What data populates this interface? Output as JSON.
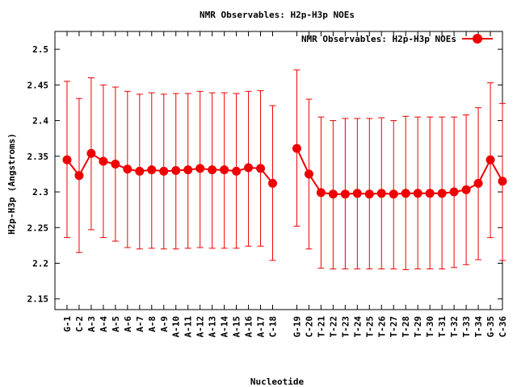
{
  "chart_data": {
    "type": "scatter",
    "title": "NMR Observables: H2p-H3p NOEs",
    "xlabel": "Nucleotide",
    "ylabel": "H2p-H3p (Angstroms)",
    "ylim": [
      2.135,
      2.525
    ],
    "yticks": [
      2.15,
      2.2,
      2.25,
      2.3,
      2.35,
      2.4,
      2.45,
      2.5
    ],
    "ytick_labels": [
      "2.15",
      "2.2",
      "2.25",
      "2.3",
      "2.35",
      "2.4",
      "2.45",
      "2.5"
    ],
    "legend_position": "top-right",
    "grid": false,
    "color": "#ee0000",
    "series": [
      {
        "name": "NMR Observables: H2p-H3p NOEs",
        "segments": [
          {
            "categories": [
              "G-1",
              "C-2",
              "A-3",
              "A-4",
              "A-5",
              "A-6",
              "A-7",
              "A-8",
              "A-9",
              "A-10",
              "A-11",
              "A-12",
              "A-13",
              "A-14",
              "A-15",
              "A-16",
              "A-17",
              "C-18"
            ],
            "positions": [
              1,
              2,
              3,
              4,
              5,
              6,
              7,
              8,
              9,
              10,
              11,
              12,
              13,
              14,
              15,
              16,
              17,
              18
            ],
            "values": [
              2.345,
              2.323,
              2.354,
              2.343,
              2.339,
              2.332,
              2.329,
              2.331,
              2.329,
              2.33,
              2.331,
              2.333,
              2.331,
              2.331,
              2.329,
              2.334,
              2.333,
              2.312
            ],
            "err_low": [
              2.236,
              2.215,
              2.247,
              2.236,
              2.231,
              2.222,
              2.22,
              2.221,
              2.22,
              2.22,
              2.221,
              2.222,
              2.221,
              2.221,
              2.221,
              2.224,
              2.224,
              2.204
            ],
            "err_high": [
              2.455,
              2.431,
              2.46,
              2.45,
              2.447,
              2.441,
              2.437,
              2.439,
              2.437,
              2.438,
              2.438,
              2.441,
              2.439,
              2.439,
              2.438,
              2.441,
              2.442,
              2.421
            ]
          },
          {
            "categories": [
              "G-19",
              "C-20",
              "T-21",
              "T-22",
              "T-23",
              "T-24",
              "T-25",
              "T-26",
              "T-27",
              "T-28",
              "T-29",
              "T-30",
              "T-31",
              "T-32",
              "T-33",
              "T-34",
              "G-35",
              "C-36"
            ],
            "positions": [
              20,
              21,
              22,
              23,
              24,
              25,
              26,
              27,
              28,
              29,
              30,
              31,
              32,
              33,
              34,
              35,
              36,
              37
            ],
            "values": [
              2.361,
              2.325,
              2.299,
              2.297,
              2.297,
              2.298,
              2.297,
              2.298,
              2.297,
              2.298,
              2.298,
              2.298,
              2.298,
              2.3,
              2.303,
              2.312,
              2.345,
              2.315
            ],
            "err_low": [
              2.252,
              2.22,
              2.193,
              2.192,
              2.192,
              2.192,
              2.192,
              2.192,
              2.192,
              2.191,
              2.192,
              2.192,
              2.192,
              2.194,
              2.198,
              2.205,
              2.236,
              2.204
            ],
            "err_high": [
              2.471,
              2.43,
              2.405,
              2.4,
              2.403,
              2.403,
              2.403,
              2.404,
              2.4,
              2.406,
              2.405,
              2.405,
              2.405,
              2.405,
              2.408,
              2.418,
              2.453,
              2.424
            ]
          }
        ]
      }
    ]
  }
}
